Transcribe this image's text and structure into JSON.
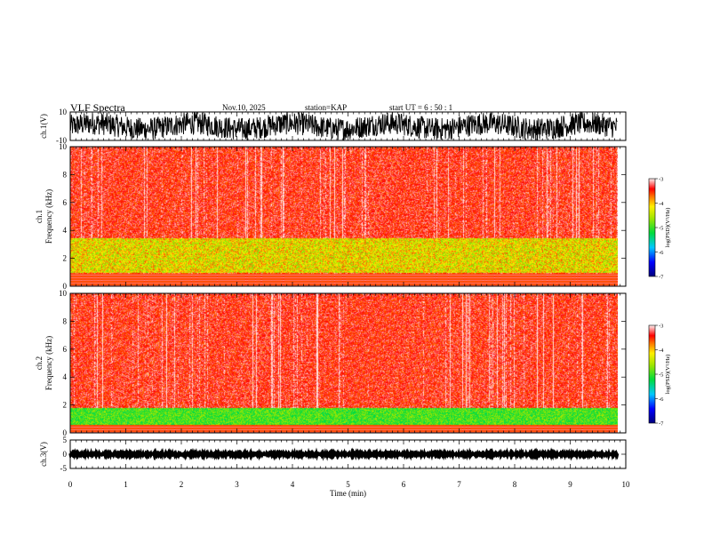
{
  "header": {
    "title": "VLF Spectra",
    "date": "Nov.10, 2025",
    "station": "station=KAP",
    "start_ut": "start UT =  6 : 50 : 1"
  },
  "chart_data": {
    "type": "heatmap",
    "title": "VLF Spectra",
    "xlabel": "Time (min)",
    "x_range": [
      0,
      10
    ],
    "x_ticks": [
      0,
      1,
      2,
      3,
      4,
      5,
      6,
      7,
      8,
      9,
      10
    ],
    "data_end_min": 9.85,
    "panels": [
      {
        "name": "ch1-waveform",
        "type": "line",
        "ylabel": "ch.1(V)",
        "y_range": [
          -10,
          10
        ],
        "y_ticks": [
          "10",
          "-10"
        ],
        "description_values": {
          "mean_offset": 2,
          "amplitude": 8
        }
      },
      {
        "name": "ch1-spectrogram",
        "type": "heatmap",
        "ylabel_lines": [
          "ch.1",
          "Frequency (kHz)"
        ],
        "y_range": [
          0,
          10
        ],
        "y_ticks": [
          0,
          2,
          4,
          6,
          8,
          10
        ],
        "strong_band_khz": [
          1.0,
          3.5
        ],
        "colorbar": {
          "label": "log(PSD)(V²/Hz)",
          "range": [
            -7,
            -3
          ],
          "ticks": [
            "-3",
            "-4",
            "-5",
            "-6",
            "-7"
          ]
        }
      },
      {
        "name": "ch2-spectrogram",
        "type": "heatmap",
        "ylabel_lines": [
          "ch.2",
          "Frequency (kHz)"
        ],
        "y_range": [
          0,
          10
        ],
        "y_ticks": [
          0,
          2,
          4,
          6,
          8,
          10
        ],
        "strong_band_khz": [
          0.6,
          1.8
        ],
        "colorbar": {
          "label": "log(PSD)(V²/Hz)",
          "range": [
            -7,
            -3
          ],
          "ticks": [
            "-3",
            "-4",
            "-5",
            "-6",
            "-7"
          ]
        }
      },
      {
        "name": "ch3-waveform",
        "type": "line",
        "ylabel": "ch.3(V)",
        "y_range": [
          -5,
          5
        ],
        "y_ticks": [
          "5",
          "0",
          "-5"
        ],
        "description_values": {
          "mean_offset": 0,
          "amplitude": 0.3
        }
      }
    ]
  }
}
